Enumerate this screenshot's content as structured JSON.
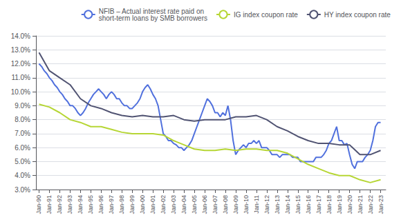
{
  "chart_data": {
    "type": "line",
    "series": [
      {
        "name": "NFIB – Actual interest rate paid on\nshort-term loans by SMB borrowers",
        "x": [
          1990,
          1990.25,
          1990.5,
          1990.75,
          1991,
          1991.25,
          1991.5,
          1991.75,
          1992,
          1992.25,
          1992.5,
          1992.75,
          1993,
          1993.25,
          1993.5,
          1993.75,
          1994,
          1994.25,
          1994.5,
          1994.75,
          1995,
          1995.25,
          1995.5,
          1995.75,
          1996,
          1996.25,
          1996.5,
          1996.75,
          1997,
          1997.25,
          1997.5,
          1997.75,
          1998,
          1998.25,
          1998.5,
          1998.75,
          1999,
          1999.25,
          1999.5,
          1999.75,
          2000,
          2000.25,
          2000.5,
          2000.75,
          2001,
          2001.25,
          2001.5,
          2001.75,
          2002,
          2002.25,
          2002.5,
          2002.75,
          2003,
          2003.25,
          2003.5,
          2003.75,
          2004,
          2004.25,
          2004.5,
          2004.75,
          2005,
          2005.25,
          2005.5,
          2005.75,
          2006,
          2006.25,
          2006.5,
          2006.75,
          2007,
          2007.25,
          2007.5,
          2007.75,
          2008,
          2008.25,
          2008.5,
          2008.75,
          2009,
          2009.25,
          2009.5,
          2009.75,
          2010,
          2010.25,
          2010.5,
          2010.75,
          2011,
          2011.25,
          2011.5,
          2011.75,
          2012,
          2012.25,
          2012.5,
          2012.75,
          2013,
          2013.25,
          2013.5,
          2013.75,
          2014,
          2014.25,
          2014.5,
          2014.75,
          2015,
          2015.25,
          2015.5,
          2015.75,
          2016,
          2016.25,
          2016.5,
          2016.75,
          2017,
          2017.25,
          2017.5,
          2017.75,
          2018,
          2018.25,
          2018.5,
          2018.75,
          2019,
          2019.25,
          2019.5,
          2019.75,
          2020,
          2020.25,
          2020.5,
          2020.75,
          2021,
          2021.25,
          2021.5,
          2021.75,
          2022,
          2022.25,
          2022.5,
          2022.75,
          2023
        ],
        "values": [
          12.0,
          11.8,
          11.5,
          11.3,
          11.0,
          10.8,
          10.5,
          10.3,
          10.0,
          9.8,
          9.5,
          9.3,
          9.0,
          9.0,
          8.8,
          8.5,
          8.3,
          8.5,
          8.8,
          9.2,
          9.5,
          9.8,
          10.0,
          10.2,
          10.0,
          9.8,
          9.5,
          9.8,
          10.0,
          9.8,
          9.5,
          9.5,
          9.2,
          9.0,
          9.0,
          8.8,
          8.8,
          9.0,
          9.2,
          9.5,
          10.0,
          10.3,
          10.5,
          10.2,
          9.8,
          9.5,
          9.0,
          8.0,
          7.0,
          6.8,
          6.5,
          6.5,
          6.3,
          6.2,
          6.0,
          6.0,
          5.8,
          6.0,
          6.2,
          6.5,
          7.0,
          7.5,
          8.0,
          8.5,
          9.0,
          9.5,
          9.3,
          9.0,
          8.5,
          8.5,
          8.2,
          8.5,
          8.3,
          9.0,
          8.0,
          6.5,
          5.5,
          5.8,
          6.0,
          6.2,
          6.0,
          6.3,
          6.3,
          6.5,
          6.3,
          6.5,
          6.0,
          6.0,
          6.0,
          5.8,
          5.5,
          5.5,
          5.5,
          5.3,
          5.5,
          5.5,
          5.5,
          5.5,
          5.3,
          5.3,
          5.3,
          5.0,
          5.0,
          5.0,
          5.0,
          5.0,
          5.0,
          5.3,
          5.3,
          5.3,
          5.5,
          5.8,
          6.3,
          6.5,
          7.0,
          7.5,
          6.5,
          6.5,
          6.2,
          6.3,
          5.5,
          4.8,
          4.5,
          5.0,
          5.0,
          5.0,
          5.3,
          5.5,
          5.8,
          6.5,
          7.5,
          7.8,
          7.8
        ]
      },
      {
        "name": "IG index coupon rate",
        "x": [
          1990,
          1991,
          1992,
          1993,
          1994,
          1995,
          1996,
          1997,
          1998,
          1999,
          2000,
          2001,
          2002,
          2003,
          2004,
          2005,
          2006,
          2007,
          2008,
          2009,
          2010,
          2011,
          2012,
          2013,
          2014,
          2015,
          2016,
          2017,
          2018,
          2019,
          2020,
          2021,
          2022,
          2023
        ],
        "values": [
          9.1,
          8.9,
          8.5,
          8.0,
          7.8,
          7.5,
          7.5,
          7.3,
          7.1,
          7.0,
          7.0,
          7.0,
          6.9,
          6.5,
          6.2,
          5.9,
          5.8,
          5.8,
          5.9,
          5.8,
          5.9,
          5.9,
          5.8,
          5.8,
          5.6,
          5.2,
          4.8,
          4.5,
          4.2,
          4.0,
          4.0,
          3.7,
          3.5,
          3.7
        ]
      },
      {
        "name": "HY index coupon rate",
        "x": [
          1990,
          1991,
          1992,
          1993,
          1994,
          1995,
          1996,
          1997,
          1998,
          1999,
          2000,
          2001,
          2002,
          2003,
          2004,
          2005,
          2006,
          2007,
          2008,
          2009,
          2010,
          2011,
          2012,
          2013,
          2014,
          2015,
          2016,
          2017,
          2018,
          2019,
          2020,
          2021,
          2022,
          2023
        ],
        "values": [
          12.8,
          11.5,
          11.0,
          10.5,
          9.5,
          9.0,
          8.8,
          8.5,
          8.3,
          8.2,
          8.3,
          8.2,
          8.2,
          8.3,
          8.0,
          7.9,
          8.0,
          8.0,
          8.0,
          8.2,
          8.2,
          8.3,
          8.0,
          7.5,
          7.2,
          6.8,
          6.5,
          6.3,
          6.3,
          6.2,
          6.2,
          5.5,
          5.5,
          5.8
        ]
      }
    ],
    "xlim": [
      1989.7,
      2023.5
    ],
    "xticks": [
      {
        "value": 1990,
        "label": "Jan-90"
      },
      {
        "value": 1991,
        "label": "Jan-91"
      },
      {
        "value": 1992,
        "label": "Jan-92"
      },
      {
        "value": 1993,
        "label": "Jan-93"
      },
      {
        "value": 1994,
        "label": "Jan-94"
      },
      {
        "value": 1995,
        "label": "Jan-95"
      },
      {
        "value": 1996,
        "label": "Jan-96"
      },
      {
        "value": 1997,
        "label": "Jan-97"
      },
      {
        "value": 1998,
        "label": "Jan-98"
      },
      {
        "value": 1999,
        "label": "Jan-99"
      },
      {
        "value": 2000,
        "label": "Jan-00"
      },
      {
        "value": 2001,
        "label": "Jan-01"
      },
      {
        "value": 2002,
        "label": "Jan-02"
      },
      {
        "value": 2003,
        "label": "Jan-03"
      },
      {
        "value": 2004,
        "label": "Jan-04"
      },
      {
        "value": 2005,
        "label": "Jan-05"
      },
      {
        "value": 2006,
        "label": "Jan-06"
      },
      {
        "value": 2007,
        "label": "Jan-07"
      },
      {
        "value": 2008,
        "label": "Jan-08"
      },
      {
        "value": 2009,
        "label": "Jan-09"
      },
      {
        "value": 2010,
        "label": "Jan-10"
      },
      {
        "value": 2011,
        "label": "Jan-11"
      },
      {
        "value": 2012,
        "label": "Jan-12"
      },
      {
        "value": 2013,
        "label": "Jan-13"
      },
      {
        "value": 2014,
        "label": "Jan-14"
      },
      {
        "value": 2015,
        "label": "Jan-15"
      },
      {
        "value": 2016,
        "label": "Jan-16"
      },
      {
        "value": 2017,
        "label": "Jan-17"
      },
      {
        "value": 2018,
        "label": "Jan-18"
      },
      {
        "value": 2019,
        "label": "Jan-19"
      },
      {
        "value": 2020,
        "label": "Jan-20"
      },
      {
        "value": 2021,
        "label": "Jan-21"
      },
      {
        "value": 2022,
        "label": "Jan-22"
      },
      {
        "value": 2023,
        "label": "Jan-23"
      }
    ],
    "ylim": [
      3.0,
      14.0
    ],
    "yticks": [
      {
        "value": 3.0,
        "label": "3.0%"
      },
      {
        "value": 4.0,
        "label": "4.0%"
      },
      {
        "value": 5.0,
        "label": "5.0%"
      },
      {
        "value": 6.0,
        "label": "6.0%"
      },
      {
        "value": 7.0,
        "label": "7.0%"
      },
      {
        "value": 8.0,
        "label": "8.0%"
      },
      {
        "value": 9.0,
        "label": "9.0%"
      },
      {
        "value": 10.0,
        "label": "10.0%"
      },
      {
        "value": 11.0,
        "label": "11.0%"
      },
      {
        "value": 12.0,
        "label": "12.0%"
      },
      {
        "value": 13.0,
        "label": "13.0%"
      },
      {
        "value": 14.0,
        "label": "14.0%"
      }
    ],
    "grid": true,
    "legend": "upper right"
  }
}
